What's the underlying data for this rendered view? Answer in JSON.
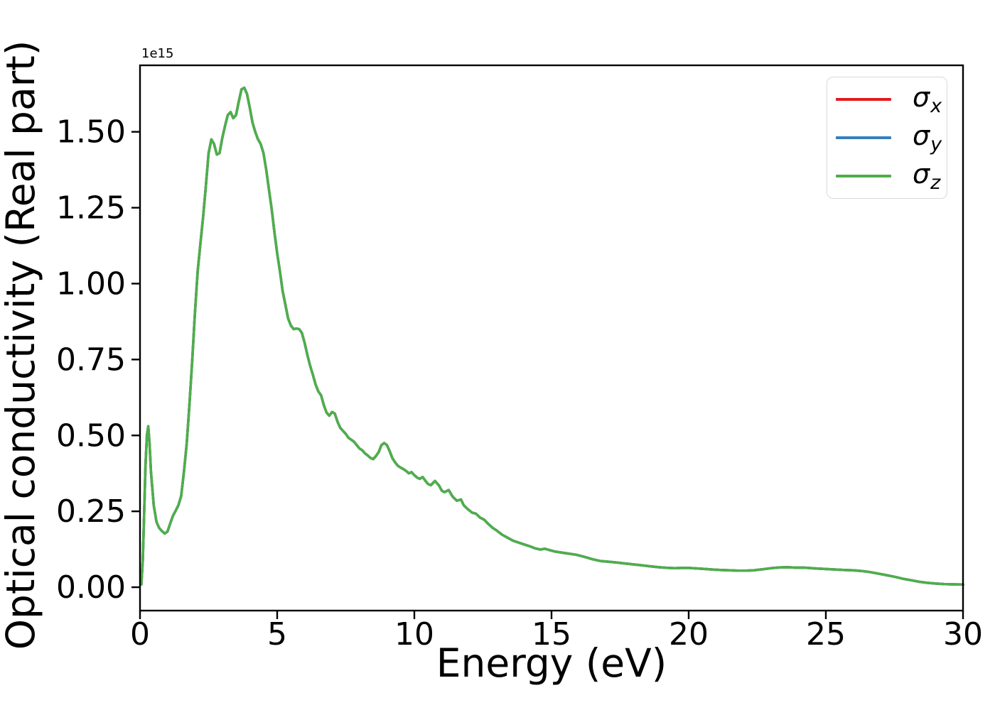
{
  "figure": {
    "background": "#ffffff",
    "title": ""
  },
  "chart_data": {
    "type": "line",
    "title": "",
    "xlabel": "Energy (eV)",
    "ylabel": "Optical conductivity (Real part)",
    "offset_text": "1e15",
    "y_unit_scale": "1e15",
    "grid": false,
    "xlim": [
      0,
      30
    ],
    "ylim": [
      -0.077,
      1.719
    ],
    "xticks": [
      0,
      5,
      10,
      15,
      20,
      25,
      30
    ],
    "xtick_labels": [
      "0",
      "5",
      "10",
      "15",
      "20",
      "25",
      "30"
    ],
    "yticks": [
      0.0,
      0.25,
      0.5,
      0.75,
      1.0,
      1.25,
      1.5
    ],
    "ytick_labels": [
      "0.00",
      "0.25",
      "0.50",
      "0.75",
      "1.00",
      "1.25",
      "1.50"
    ],
    "legend": {
      "position": "upper right",
      "entries": [
        {
          "name": "sigma_x",
          "label": "σx",
          "symbol": "σ",
          "sub": "x",
          "color": "#e41a1c"
        },
        {
          "name": "sigma_y",
          "label": "σy",
          "symbol": "σ",
          "sub": "y",
          "color": "#377eb8"
        },
        {
          "name": "sigma_z",
          "label": "σz",
          "symbol": "σ",
          "sub": "z",
          "color": "#4daf4a"
        }
      ]
    },
    "series_note": "All three series (σx, σy, σz) have identical values and overlap exactly; σz (green) is drawn last and hides the red and blue curves.",
    "points_units": "x in eV, y in units of 1e15",
    "points": [
      [
        0.05,
        0.009
      ],
      [
        0.1,
        0.09
      ],
      [
        0.15,
        0.24
      ],
      [
        0.2,
        0.4
      ],
      [
        0.25,
        0.5
      ],
      [
        0.3,
        0.53
      ],
      [
        0.35,
        0.47
      ],
      [
        0.4,
        0.38
      ],
      [
        0.5,
        0.27
      ],
      [
        0.6,
        0.215
      ],
      [
        0.7,
        0.195
      ],
      [
        0.8,
        0.185
      ],
      [
        0.9,
        0.177
      ],
      [
        1.0,
        0.183
      ],
      [
        1.1,
        0.21
      ],
      [
        1.2,
        0.235
      ],
      [
        1.3,
        0.252
      ],
      [
        1.4,
        0.27
      ],
      [
        1.5,
        0.3
      ],
      [
        1.6,
        0.38
      ],
      [
        1.7,
        0.47
      ],
      [
        1.8,
        0.6
      ],
      [
        1.9,
        0.74
      ],
      [
        2.0,
        0.9
      ],
      [
        2.1,
        1.04
      ],
      [
        2.2,
        1.13
      ],
      [
        2.3,
        1.22
      ],
      [
        2.4,
        1.32
      ],
      [
        2.5,
        1.43
      ],
      [
        2.6,
        1.475
      ],
      [
        2.7,
        1.46
      ],
      [
        2.8,
        1.425
      ],
      [
        2.9,
        1.43
      ],
      [
        3.0,
        1.48
      ],
      [
        3.1,
        1.52
      ],
      [
        3.2,
        1.555
      ],
      [
        3.3,
        1.565
      ],
      [
        3.4,
        1.545
      ],
      [
        3.5,
        1.555
      ],
      [
        3.6,
        1.6
      ],
      [
        3.7,
        1.64
      ],
      [
        3.8,
        1.645
      ],
      [
        3.9,
        1.625
      ],
      [
        4.0,
        1.58
      ],
      [
        4.1,
        1.53
      ],
      [
        4.2,
        1.5
      ],
      [
        4.3,
        1.475
      ],
      [
        4.4,
        1.46
      ],
      [
        4.5,
        1.43
      ],
      [
        4.6,
        1.375
      ],
      [
        4.7,
        1.31
      ],
      [
        4.8,
        1.245
      ],
      [
        4.9,
        1.17
      ],
      [
        5.0,
        1.1
      ],
      [
        5.1,
        1.04
      ],
      [
        5.2,
        0.975
      ],
      [
        5.3,
        0.93
      ],
      [
        5.4,
        0.885
      ],
      [
        5.5,
        0.862
      ],
      [
        5.6,
        0.85
      ],
      [
        5.7,
        0.852
      ],
      [
        5.8,
        0.85
      ],
      [
        5.9,
        0.838
      ],
      [
        6.0,
        0.805
      ],
      [
        6.1,
        0.765
      ],
      [
        6.2,
        0.73
      ],
      [
        6.3,
        0.7
      ],
      [
        6.4,
        0.668
      ],
      [
        6.5,
        0.645
      ],
      [
        6.6,
        0.632
      ],
      [
        6.7,
        0.6
      ],
      [
        6.8,
        0.575
      ],
      [
        6.9,
        0.565
      ],
      [
        7.0,
        0.577
      ],
      [
        7.1,
        0.572
      ],
      [
        7.2,
        0.545
      ],
      [
        7.3,
        0.525
      ],
      [
        7.4,
        0.515
      ],
      [
        7.5,
        0.505
      ],
      [
        7.6,
        0.492
      ],
      [
        7.7,
        0.486
      ],
      [
        7.8,
        0.479
      ],
      [
        7.9,
        0.468
      ],
      [
        8.0,
        0.457
      ],
      [
        8.1,
        0.451
      ],
      [
        8.2,
        0.441
      ],
      [
        8.3,
        0.434
      ],
      [
        8.4,
        0.426
      ],
      [
        8.5,
        0.422
      ],
      [
        8.6,
        0.432
      ],
      [
        8.7,
        0.445
      ],
      [
        8.8,
        0.468
      ],
      [
        8.9,
        0.475
      ],
      [
        9.0,
        0.468
      ],
      [
        9.1,
        0.448
      ],
      [
        9.2,
        0.425
      ],
      [
        9.3,
        0.411
      ],
      [
        9.4,
        0.4
      ],
      [
        9.5,
        0.394
      ],
      [
        9.6,
        0.389
      ],
      [
        9.7,
        0.383
      ],
      [
        9.8,
        0.375
      ],
      [
        9.9,
        0.379
      ],
      [
        10.0,
        0.369
      ],
      [
        10.1,
        0.361
      ],
      [
        10.2,
        0.357
      ],
      [
        10.3,
        0.363
      ],
      [
        10.4,
        0.351
      ],
      [
        10.5,
        0.34
      ],
      [
        10.6,
        0.336
      ],
      [
        10.75,
        0.35
      ],
      [
        10.9,
        0.335
      ],
      [
        11.0,
        0.318
      ],
      [
        11.1,
        0.313
      ],
      [
        11.25,
        0.32
      ],
      [
        11.4,
        0.298
      ],
      [
        11.55,
        0.285
      ],
      [
        11.7,
        0.289
      ],
      [
        11.8,
        0.27
      ],
      [
        11.95,
        0.257
      ],
      [
        12.1,
        0.246
      ],
      [
        12.25,
        0.242
      ],
      [
        12.4,
        0.229
      ],
      [
        12.55,
        0.222
      ],
      [
        12.7,
        0.208
      ],
      [
        12.85,
        0.196
      ],
      [
        13.0,
        0.187
      ],
      [
        13.2,
        0.173
      ],
      [
        13.4,
        0.163
      ],
      [
        13.6,
        0.153
      ],
      [
        13.8,
        0.147
      ],
      [
        14.0,
        0.141
      ],
      [
        14.2,
        0.135
      ],
      [
        14.4,
        0.128
      ],
      [
        14.6,
        0.124
      ],
      [
        14.75,
        0.127
      ],
      [
        14.9,
        0.123
      ],
      [
        15.1,
        0.118
      ],
      [
        15.3,
        0.115
      ],
      [
        15.6,
        0.111
      ],
      [
        15.9,
        0.107
      ],
      [
        16.2,
        0.1
      ],
      [
        16.5,
        0.092
      ],
      [
        16.8,
        0.086
      ],
      [
        17.1,
        0.084
      ],
      [
        17.4,
        0.081
      ],
      [
        17.7,
        0.078
      ],
      [
        18.0,
        0.075
      ],
      [
        18.3,
        0.072
      ],
      [
        18.6,
        0.069
      ],
      [
        18.9,
        0.066
      ],
      [
        19.2,
        0.064
      ],
      [
        19.5,
        0.0625
      ],
      [
        19.8,
        0.064
      ],
      [
        20.0,
        0.0635
      ],
      [
        20.3,
        0.062
      ],
      [
        20.6,
        0.06
      ],
      [
        20.9,
        0.058
      ],
      [
        21.2,
        0.0565
      ],
      [
        21.5,
        0.0555
      ],
      [
        21.8,
        0.0545
      ],
      [
        22.1,
        0.0545
      ],
      [
        22.4,
        0.056
      ],
      [
        22.7,
        0.059
      ],
      [
        23.0,
        0.0625
      ],
      [
        23.3,
        0.065
      ],
      [
        23.6,
        0.066
      ],
      [
        23.9,
        0.0645
      ],
      [
        24.2,
        0.0645
      ],
      [
        24.5,
        0.0625
      ],
      [
        24.8,
        0.061
      ],
      [
        25.1,
        0.0595
      ],
      [
        25.4,
        0.058
      ],
      [
        25.7,
        0.0565
      ],
      [
        26.0,
        0.0555
      ],
      [
        26.3,
        0.0535
      ],
      [
        26.6,
        0.05
      ],
      [
        26.9,
        0.045
      ],
      [
        27.2,
        0.04
      ],
      [
        27.5,
        0.0345
      ],
      [
        27.8,
        0.028
      ],
      [
        28.1,
        0.023
      ],
      [
        28.4,
        0.018
      ],
      [
        28.7,
        0.0145
      ],
      [
        29.0,
        0.012
      ],
      [
        29.3,
        0.0105
      ],
      [
        29.6,
        0.0095
      ],
      [
        30.0,
        0.009
      ]
    ]
  }
}
